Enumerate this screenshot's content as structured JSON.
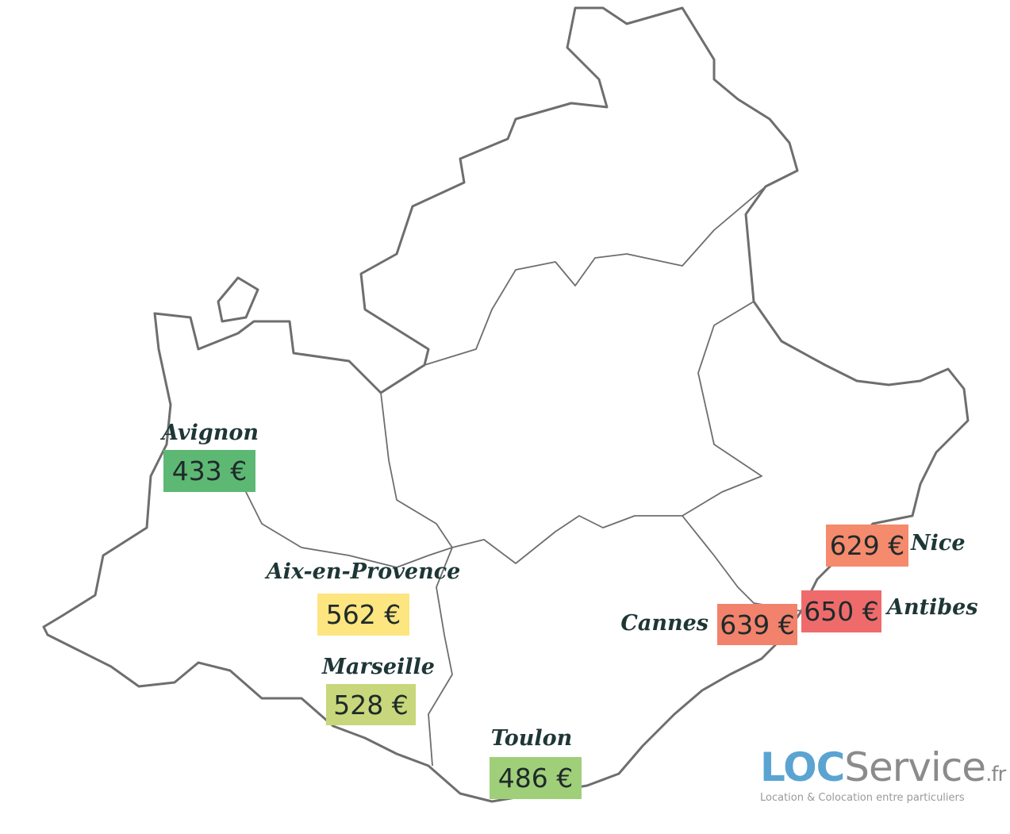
{
  "cities": [
    {
      "name": "Avignon",
      "price": "433 €",
      "color": "#5db874"
    },
    {
      "name": "Aix-en-Provence",
      "price": "562 €",
      "color": "#fde580"
    },
    {
      "name": "Marseille",
      "price": "528 €",
      "color": "#c8d77b"
    },
    {
      "name": "Toulon",
      "price": "486 €",
      "color": "#a0cf7a"
    },
    {
      "name": "Cannes",
      "price": "639 €",
      "color": "#f2826c"
    },
    {
      "name": "Antibes",
      "price": "650 €",
      "color": "#ef6b6b"
    },
    {
      "name": "Nice",
      "price": "629 €",
      "color": "#f58a6d"
    }
  ],
  "logo": {
    "brand": "LOC",
    "brand2": "Service",
    "tld": ".fr",
    "tagline": "Location & Colocation entre particuliers"
  }
}
